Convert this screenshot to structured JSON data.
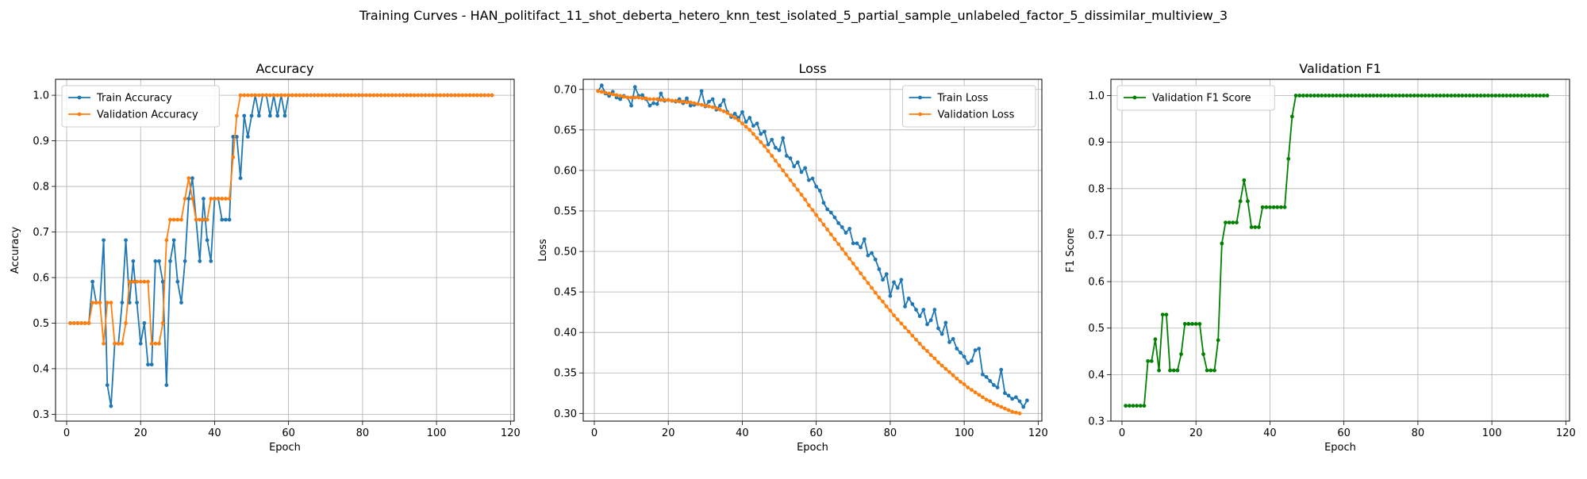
{
  "figure": {
    "suptitle": "Training Curves - HAN_politifact_11_shot_deberta_hetero_knn_test_isolated_5_partial_sample_unlabeled_factor_5_dissimilar_multiview_3"
  },
  "chart_data": [
    {
      "type": "line",
      "title": "Accuracy",
      "xlabel": "Epoch",
      "ylabel": "Accuracy",
      "xlim": [
        -3,
        121
      ],
      "ylim": [
        0.285,
        1.035
      ],
      "xticks": [
        "0",
        "20",
        "40",
        "60",
        "80",
        "100",
        "120"
      ],
      "yticks": [
        "0.3",
        "0.4",
        "0.5",
        "0.6",
        "0.7",
        "0.8",
        "0.9",
        "1.0"
      ],
      "grid": true,
      "legend": "upper left",
      "x_start": 1,
      "series": [
        {
          "name": "Train Accuracy",
          "color": "#1f77b4",
          "values": [
            0.5,
            0.5,
            0.5,
            0.5,
            0.5,
            0.5,
            0.591,
            0.545,
            0.545,
            0.682,
            0.364,
            0.318,
            0.455,
            0.455,
            0.545,
            0.682,
            0.545,
            0.636,
            0.545,
            0.455,
            0.5,
            0.409,
            0.409,
            0.636,
            0.636,
            0.591,
            0.364,
            0.636,
            0.682,
            0.591,
            0.545,
            0.636,
            0.773,
            0.818,
            0.727,
            0.636,
            0.773,
            0.682,
            0.636,
            0.773,
            0.773,
            0.727,
            0.727,
            0.727,
            0.909,
            0.909,
            0.818,
            0.955,
            0.909,
            0.955,
            1.0,
            0.955,
            1.0,
            1.0,
            0.955,
            1.0,
            0.955,
            1.0,
            0.955,
            1.0,
            1.0,
            1.0,
            1.0,
            1.0,
            1.0,
            1.0,
            1.0,
            1.0,
            1.0,
            1.0,
            1.0,
            1.0,
            1.0,
            1.0,
            1.0,
            1.0,
            1.0,
            1.0,
            1.0,
            1.0,
            1.0,
            1.0,
            1.0,
            1.0,
            1.0,
            1.0,
            1.0,
            1.0,
            1.0,
            1.0,
            1.0,
            1.0,
            1.0,
            1.0,
            1.0,
            1.0,
            1.0,
            1.0,
            1.0,
            1.0,
            1.0,
            1.0,
            1.0,
            1.0,
            1.0,
            1.0,
            1.0,
            1.0,
            1.0,
            1.0,
            1.0,
            1.0,
            1.0,
            1.0,
            1.0
          ]
        },
        {
          "name": "Validation Accuracy",
          "color": "#ff7f0e",
          "values": [
            0.5,
            0.5,
            0.5,
            0.5,
            0.5,
            0.5,
            0.545,
            0.545,
            0.545,
            0.455,
            0.545,
            0.545,
            0.455,
            0.455,
            0.455,
            0.5,
            0.591,
            0.591,
            0.591,
            0.591,
            0.591,
            0.591,
            0.455,
            0.455,
            0.455,
            0.5,
            0.682,
            0.727,
            0.727,
            0.727,
            0.727,
            0.773,
            0.818,
            0.773,
            0.727,
            0.727,
            0.727,
            0.727,
            0.773,
            0.773,
            0.773,
            0.773,
            0.773,
            0.773,
            0.864,
            0.955,
            1.0,
            1.0,
            1.0,
            1.0,
            1.0,
            1.0,
            1.0,
            1.0,
            1.0,
            1.0,
            1.0,
            1.0,
            1.0,
            1.0,
            1.0,
            1.0,
            1.0,
            1.0,
            1.0,
            1.0,
            1.0,
            1.0,
            1.0,
            1.0,
            1.0,
            1.0,
            1.0,
            1.0,
            1.0,
            1.0,
            1.0,
            1.0,
            1.0,
            1.0,
            1.0,
            1.0,
            1.0,
            1.0,
            1.0,
            1.0,
            1.0,
            1.0,
            1.0,
            1.0,
            1.0,
            1.0,
            1.0,
            1.0,
            1.0,
            1.0,
            1.0,
            1.0,
            1.0,
            1.0,
            1.0,
            1.0,
            1.0,
            1.0,
            1.0,
            1.0,
            1.0,
            1.0,
            1.0,
            1.0,
            1.0,
            1.0,
            1.0,
            1.0,
            1.0
          ]
        }
      ]
    },
    {
      "type": "line",
      "title": "Loss",
      "xlabel": "Epoch",
      "ylabel": "Loss",
      "xlim": [
        -3,
        121
      ],
      "ylim": [
        0.2905,
        0.7125
      ],
      "xticks": [
        "0",
        "20",
        "40",
        "60",
        "80",
        "100",
        "120"
      ],
      "yticks": [
        "0.30",
        "0.35",
        "0.40",
        "0.45",
        "0.50",
        "0.55",
        "0.60",
        "0.65",
        "0.70"
      ],
      "grid": true,
      "legend": "upper right",
      "x_start": 1,
      "series": [
        {
          "name": "Train Loss",
          "color": "#1f77b4",
          "values": [
            0.698,
            0.705,
            0.695,
            0.692,
            0.697,
            0.69,
            0.688,
            0.692,
            0.69,
            0.68,
            0.703,
            0.692,
            0.693,
            0.688,
            0.68,
            0.683,
            0.682,
            0.695,
            0.686,
            0.687,
            0.686,
            0.685,
            0.688,
            0.683,
            0.689,
            0.68,
            0.681,
            0.682,
            0.698,
            0.679,
            0.685,
            0.688,
            0.675,
            0.68,
            0.687,
            0.672,
            0.666,
            0.67,
            0.665,
            0.672,
            0.66,
            0.665,
            0.655,
            0.658,
            0.645,
            0.648,
            0.632,
            0.638,
            0.628,
            0.625,
            0.64,
            0.618,
            0.615,
            0.605,
            0.61,
            0.598,
            0.603,
            0.588,
            0.59,
            0.58,
            0.575,
            0.56,
            0.552,
            0.548,
            0.542,
            0.535,
            0.53,
            0.523,
            0.528,
            0.51,
            0.51,
            0.505,
            0.515,
            0.495,
            0.498,
            0.49,
            0.478,
            0.465,
            0.472,
            0.445,
            0.462,
            0.455,
            0.465,
            0.432,
            0.442,
            0.435,
            0.428,
            0.42,
            0.428,
            0.41,
            0.415,
            0.428,
            0.405,
            0.398,
            0.412,
            0.388,
            0.392,
            0.38,
            0.375,
            0.37,
            0.362,
            0.365,
            0.378,
            0.38,
            0.348,
            0.345,
            0.34,
            0.335,
            0.332,
            0.354,
            0.325,
            0.322,
            0.318,
            0.32,
            0.315,
            0.308,
            0.316
          ]
        },
        {
          "name": "Validation Loss",
          "color": "#ff7f0e",
          "values": [
            0.698,
            0.697,
            0.696,
            0.695,
            0.694,
            0.693,
            0.692,
            0.691,
            0.69,
            0.69,
            0.69,
            0.69,
            0.689,
            0.689,
            0.688,
            0.688,
            0.688,
            0.687,
            0.687,
            0.687,
            0.686,
            0.686,
            0.685,
            0.685,
            0.684,
            0.684,
            0.683,
            0.682,
            0.681,
            0.68,
            0.679,
            0.678,
            0.677,
            0.675,
            0.673,
            0.671,
            0.668,
            0.665,
            0.662,
            0.658,
            0.654,
            0.65,
            0.645,
            0.64,
            0.635,
            0.63,
            0.624,
            0.618,
            0.612,
            0.606,
            0.6,
            0.594,
            0.588,
            0.582,
            0.576,
            0.57,
            0.564,
            0.557,
            0.551,
            0.545,
            0.539,
            0.533,
            0.527,
            0.521,
            0.515,
            0.509,
            0.503,
            0.497,
            0.491,
            0.485,
            0.479,
            0.473,
            0.467,
            0.461,
            0.455,
            0.449,
            0.443,
            0.438,
            0.432,
            0.427,
            0.421,
            0.416,
            0.411,
            0.406,
            0.401,
            0.396,
            0.391,
            0.386,
            0.381,
            0.377,
            0.372,
            0.368,
            0.363,
            0.359,
            0.355,
            0.351,
            0.347,
            0.343,
            0.339,
            0.336,
            0.332,
            0.329,
            0.326,
            0.323,
            0.32,
            0.317,
            0.315,
            0.312,
            0.31,
            0.308,
            0.306,
            0.304,
            0.302,
            0.301,
            0.3
          ]
        }
      ]
    },
    {
      "type": "line",
      "title": "Validation F1",
      "xlabel": "Epoch",
      "ylabel": "F1 Score",
      "xlim": [
        -3,
        121
      ],
      "ylim": [
        0.3,
        1.035
      ],
      "xticks": [
        "0",
        "20",
        "40",
        "60",
        "80",
        "100",
        "120"
      ],
      "yticks": [
        "0.3",
        "0.4",
        "0.5",
        "0.6",
        "0.7",
        "0.8",
        "0.9",
        "1.0"
      ],
      "grid": true,
      "legend": "upper left",
      "x_start": 1,
      "series": [
        {
          "name": "Validation F1 Score",
          "color": "#008000",
          "values": [
            0.333,
            0.333,
            0.333,
            0.333,
            0.333,
            0.333,
            0.429,
            0.429,
            0.476,
            0.409,
            0.529,
            0.529,
            0.409,
            0.409,
            0.409,
            0.444,
            0.509,
            0.509,
            0.509,
            0.509,
            0.509,
            0.444,
            0.409,
            0.409,
            0.409,
            0.474,
            0.682,
            0.727,
            0.727,
            0.727,
            0.727,
            0.773,
            0.818,
            0.773,
            0.717,
            0.717,
            0.717,
            0.76,
            0.76,
            0.76,
            0.76,
            0.76,
            0.76,
            0.76,
            0.864,
            0.955,
            1.0,
            1.0,
            1.0,
            1.0,
            1.0,
            1.0,
            1.0,
            1.0,
            1.0,
            1.0,
            1.0,
            1.0,
            1.0,
            1.0,
            1.0,
            1.0,
            1.0,
            1.0,
            1.0,
            1.0,
            1.0,
            1.0,
            1.0,
            1.0,
            1.0,
            1.0,
            1.0,
            1.0,
            1.0,
            1.0,
            1.0,
            1.0,
            1.0,
            1.0,
            1.0,
            1.0,
            1.0,
            1.0,
            1.0,
            1.0,
            1.0,
            1.0,
            1.0,
            1.0,
            1.0,
            1.0,
            1.0,
            1.0,
            1.0,
            1.0,
            1.0,
            1.0,
            1.0,
            1.0,
            1.0,
            1.0,
            1.0,
            1.0,
            1.0,
            1.0,
            1.0,
            1.0,
            1.0,
            1.0,
            1.0,
            1.0,
            1.0,
            1.0,
            1.0
          ]
        }
      ]
    }
  ]
}
